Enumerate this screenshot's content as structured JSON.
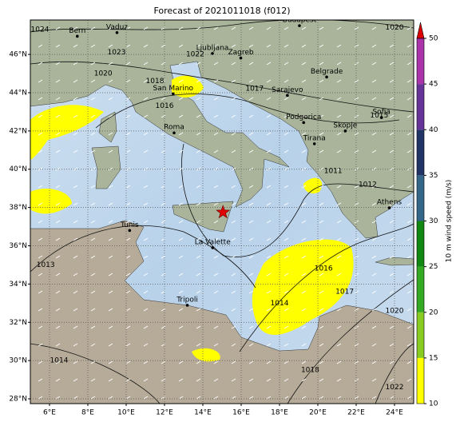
{
  "chart_data": {
    "type": "map",
    "title": "Forecast of 2021011018 (f012)",
    "xlim": [
      5,
      25
    ],
    "ylim": [
      27.75,
      47.8
    ],
    "xticks": [
      {
        "value": 6,
        "label": "6°E"
      },
      {
        "value": 8,
        "label": "8°E"
      },
      {
        "value": 10,
        "label": "10°E"
      },
      {
        "value": 12,
        "label": "12°E"
      },
      {
        "value": 14,
        "label": "14°E"
      },
      {
        "value": 16,
        "label": "16°E"
      },
      {
        "value": 18,
        "label": "18°E"
      },
      {
        "value": 20,
        "label": "20°E"
      },
      {
        "value": 22,
        "label": "22°E"
      },
      {
        "value": 24,
        "label": "24°E"
      }
    ],
    "yticks": [
      {
        "value": 28,
        "label": "28°N"
      },
      {
        "value": 30,
        "label": "30°N"
      },
      {
        "value": 32,
        "label": "32°N"
      },
      {
        "value": 34,
        "label": "34°N"
      },
      {
        "value": 36,
        "label": "36°N"
      },
      {
        "value": 38,
        "label": "38°N"
      },
      {
        "value": 40,
        "label": "40°N"
      },
      {
        "value": 42,
        "label": "42°N"
      },
      {
        "value": 44,
        "label": "44°N"
      },
      {
        "value": 46,
        "label": "46°N"
      }
    ],
    "grid": true,
    "cities": [
      {
        "name": "Bern",
        "lon": 7.45,
        "lat": 46.95
      },
      {
        "name": "Vaduz",
        "lon": 9.52,
        "lat": 47.14
      },
      {
        "name": "Budapest",
        "lon": 19.04,
        "lat": 47.5
      },
      {
        "name": "Ljubljana",
        "lon": 14.5,
        "lat": 46.05
      },
      {
        "name": "Zagreb",
        "lon": 15.98,
        "lat": 45.81
      },
      {
        "name": "Belgrade",
        "lon": 20.46,
        "lat": 44.82
      },
      {
        "name": "San Marino",
        "lon": 12.45,
        "lat": 43.94
      },
      {
        "name": "Sarajevo",
        "lon": 18.41,
        "lat": 43.86
      },
      {
        "name": "Podgorica",
        "lon": 19.26,
        "lat": 42.44
      },
      {
        "name": "Sofia",
        "lon": 23.32,
        "lat": 42.7
      },
      {
        "name": "Skopje",
        "lon": 21.43,
        "lat": 42.0
      },
      {
        "name": "Roma",
        "lon": 12.5,
        "lat": 41.9
      },
      {
        "name": "Tirana",
        "lon": 19.82,
        "lat": 41.33
      },
      {
        "name": "Athens",
        "lon": 23.73,
        "lat": 37.98
      },
      {
        "name": "Tunis",
        "lon": 10.18,
        "lat": 36.8
      },
      {
        "name": "La Valette",
        "lon": 14.51,
        "lat": 35.9
      },
      {
        "name": "Tripoli",
        "lon": 13.19,
        "lat": 32.89
      }
    ],
    "isobar_labels": [
      {
        "value": 1024,
        "lon": 5.5,
        "lat": 47.3
      },
      {
        "value": 1023,
        "lon": 9.5,
        "lat": 46.1
      },
      {
        "value": 1020,
        "lon": 8.8,
        "lat": 45.0
      },
      {
        "value": 1022,
        "lon": 13.6,
        "lat": 46.0
      },
      {
        "value": 1018,
        "lon": 11.5,
        "lat": 44.6
      },
      {
        "value": 1016,
        "lon": 12.0,
        "lat": 43.3
      },
      {
        "value": 1017,
        "lon": 16.7,
        "lat": 44.2
      },
      {
        "value": 1020,
        "lon": 24.0,
        "lat": 47.4
      },
      {
        "value": 1015,
        "lon": 23.2,
        "lat": 42.8
      },
      {
        "value": 1011,
        "lon": 20.8,
        "lat": 39.9
      },
      {
        "value": 1012,
        "lon": 22.6,
        "lat": 39.2
      },
      {
        "value": 1013,
        "lon": 5.8,
        "lat": 35.0
      },
      {
        "value": 1014,
        "lon": 6.5,
        "lat": 30.0
      },
      {
        "value": 1014,
        "lon": 18.0,
        "lat": 33.0
      },
      {
        "value": 1016,
        "lon": 20.3,
        "lat": 34.8
      },
      {
        "value": 1017,
        "lon": 21.4,
        "lat": 33.6
      },
      {
        "value": 1020,
        "lon": 24.0,
        "lat": 32.6
      },
      {
        "value": 1018,
        "lon": 19.6,
        "lat": 29.5
      },
      {
        "value": 1022,
        "lon": 24.0,
        "lat": 28.6
      }
    ],
    "marker": {
      "lon": 15.05,
      "lat": 37.75,
      "color": "#e00000"
    },
    "colorbar": {
      "label": "10 m wind speed (m/s)",
      "lim": [
        10,
        50
      ],
      "ticks": [
        10,
        15,
        20,
        25,
        30,
        35,
        40,
        45,
        50
      ],
      "colors": [
        "#ffff00",
        "#88cc22",
        "#33aa22",
        "#118811",
        "#336688",
        "#223366",
        "#663399",
        "#aa33aa"
      ],
      "extend_color": "#dd0000"
    }
  }
}
